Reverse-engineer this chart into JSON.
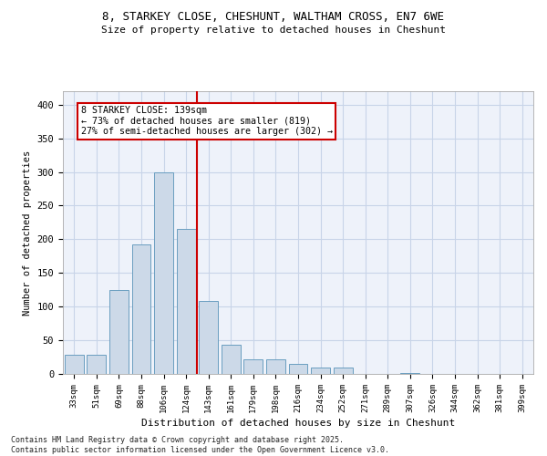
{
  "title_line1": "8, STARKEY CLOSE, CHESHUNT, WALTHAM CROSS, EN7 6WE",
  "title_line2": "Size of property relative to detached houses in Cheshunt",
  "xlabel": "Distribution of detached houses by size in Cheshunt",
  "ylabel": "Number of detached properties",
  "bar_color": "#ccd9e8",
  "bar_edge_color": "#6a9ec0",
  "grid_color": "#c8d4e8",
  "bg_color": "#eef2fa",
  "annotation_box_color": "#cc0000",
  "vline_color": "#cc0000",
  "categories": [
    "33sqm",
    "51sqm",
    "69sqm",
    "88sqm",
    "106sqm",
    "124sqm",
    "143sqm",
    "161sqm",
    "179sqm",
    "198sqm",
    "216sqm",
    "234sqm",
    "252sqm",
    "271sqm",
    "289sqm",
    "307sqm",
    "326sqm",
    "344sqm",
    "362sqm",
    "381sqm",
    "399sqm"
  ],
  "values": [
    28,
    28,
    125,
    193,
    300,
    215,
    108,
    44,
    22,
    22,
    15,
    10,
    10,
    0,
    0,
    2,
    0,
    0,
    0,
    0,
    0
  ],
  "annotation_line1": "8 STARKEY CLOSE: 139sqm",
  "annotation_line2": "← 73% of detached houses are smaller (819)",
  "annotation_line3": "27% of semi-detached houses are larger (302) →",
  "vline_position": 5.5,
  "ylim": [
    0,
    420
  ],
  "yticks": [
    0,
    50,
    100,
    150,
    200,
    250,
    300,
    350,
    400
  ],
  "footer_line1": "Contains HM Land Registry data © Crown copyright and database right 2025.",
  "footer_line2": "Contains public sector information licensed under the Open Government Licence v3.0."
}
